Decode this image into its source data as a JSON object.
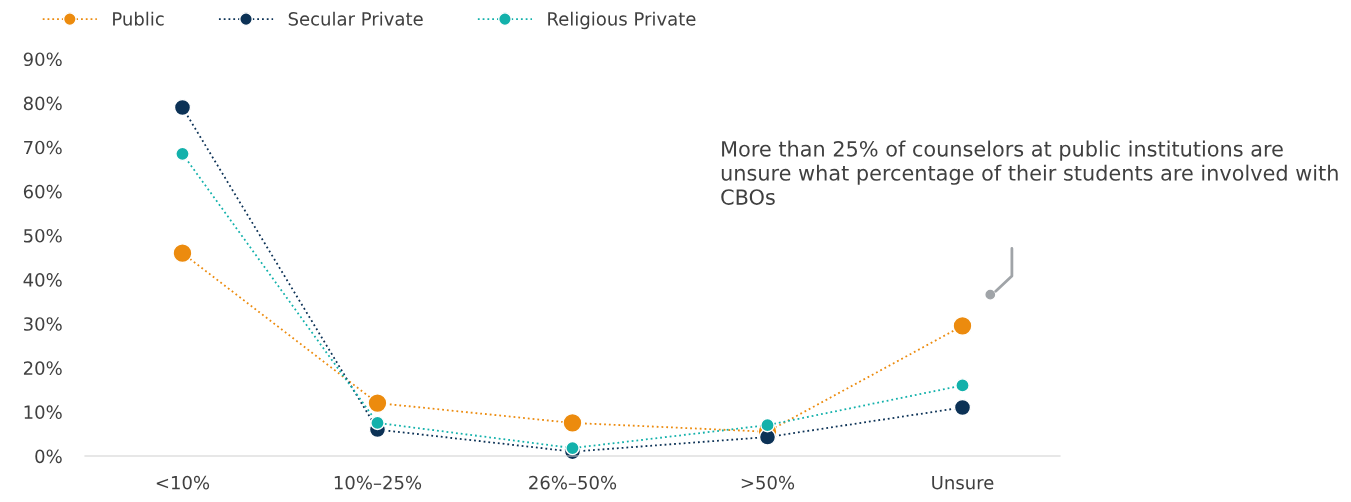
{
  "chart_data": {
    "type": "line",
    "categories": [
      "<10%",
      "10%–25%",
      "26%–50%",
      ">50%",
      "Unsure"
    ],
    "series": [
      {
        "name": "Public",
        "color": "#ec8b0e",
        "values": [
          46,
          12,
          7.5,
          5.5,
          29.5
        ]
      },
      {
        "name": "Secular Private",
        "color": "#0c3256",
        "values": [
          79,
          6,
          1,
          4.3,
          11
        ]
      },
      {
        "name": "Religious Private",
        "color": "#13b1ab",
        "values": [
          68.5,
          7.5,
          1.8,
          7,
          16
        ]
      }
    ],
    "ylim": [
      0,
      90
    ],
    "yticks": [
      {
        "value": 0,
        "label": "0%"
      },
      {
        "value": 10,
        "label": "10%"
      },
      {
        "value": 20,
        "label": "20%"
      },
      {
        "value": 30,
        "label": "30%"
      },
      {
        "value": 40,
        "label": "40%"
      },
      {
        "value": 50,
        "label": "50%"
      },
      {
        "value": 60,
        "label": "60%"
      },
      {
        "value": 70,
        "label": "70%"
      },
      {
        "value": 80,
        "label": "80%"
      },
      {
        "value": 90,
        "label": "90%"
      }
    ],
    "annotations": [
      "More than 25% of counselors at public institutions are unsure what percentage of their students are involved with CBOs"
    ],
    "grid": false,
    "legend": "top left",
    "marker": "circle",
    "line_style": "dotted"
  }
}
